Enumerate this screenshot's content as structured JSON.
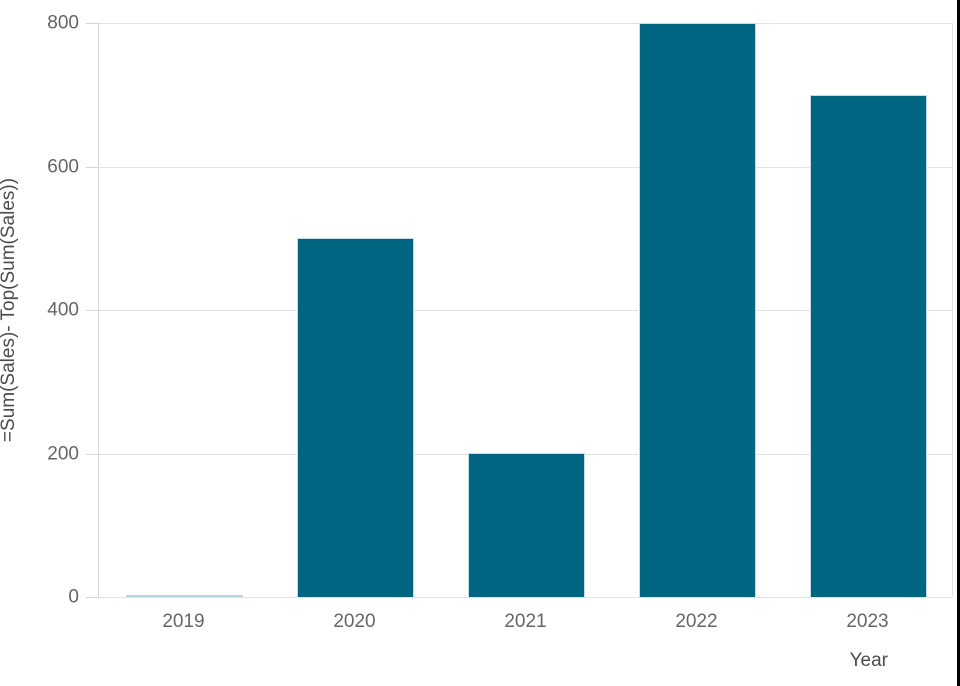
{
  "chart_data": {
    "type": "bar",
    "categories": [
      "2019",
      "2020",
      "2021",
      "2022",
      "2023"
    ],
    "values": [
      0,
      500,
      200,
      800,
      700
    ],
    "title": "",
    "xlabel": "Year",
    "ylabel": "=Sum(Sales)- Top(Sum(Sales))",
    "ylim": [
      0,
      800
    ],
    "yticks": [
      0,
      200,
      400,
      600,
      800
    ],
    "grid": true,
    "legend": "none",
    "bar_color": "#006580",
    "zero_bar_color": "#b9d6e0",
    "gridline_color": "#e2e2e2",
    "axis_line_color": "#d6d6d6",
    "tick_label_color": "#666666",
    "axis_title_color": "#4d4d4d"
  },
  "frame": {
    "right_border_color": "#000000"
  }
}
